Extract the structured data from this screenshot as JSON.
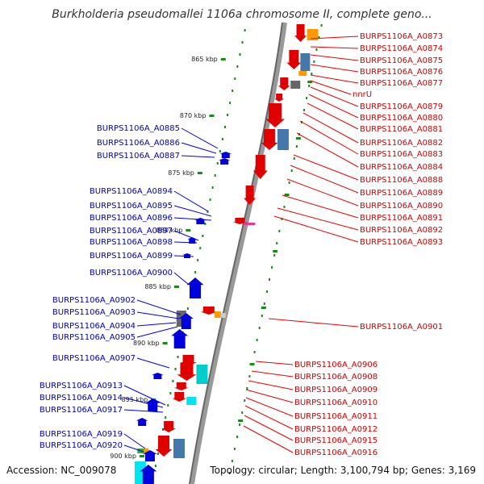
{
  "header": {
    "title": "Burkholderia pseudomallei 1106a chromosome II, complete geno..."
  },
  "footer": {
    "accession": "Accession: NC_009078",
    "summary": "Topology: circular; Length: 3,100,794 bp; Genes: 3,169"
  },
  "colors": {
    "forward": "#0000cc",
    "reverse": "#cc0000",
    "backbone": "#777777"
  },
  "ruler": [
    "865 kbp",
    "870 kbp",
    "875 kbp",
    "880 kbp",
    "885 kbp",
    "890 kbp",
    "895 kbp",
    "900 kbp"
  ],
  "left_genes": [
    "BURPS1106A_A0885",
    "BURPS1106A_A0886",
    "BURPS1106A_A0887",
    "BURPS1106A_A0894",
    "BURPS1106A_A0895",
    "BURPS1106A_A0896",
    "BURPS1106A_A0897",
    "BURPS1106A_A0898",
    "BURPS1106A_A0899",
    "BURPS1106A_A0900",
    "BURPS1106A_A0902",
    "BURPS1106A_A0903",
    "BURPS1106A_A0904",
    "BURPS1106A_A0905",
    "BURPS1106A_A0907",
    "BURPS1106A_A0913",
    "BURPS1106A_A0914",
    "BURPS1106A_A0917",
    "BURPS1106A_A0919",
    "BURPS1106A_A0920"
  ],
  "right_genes": [
    "BURPS1106A_A0873",
    "BURPS1106A_A0874",
    "BURPS1106A_A0875",
    "BURPS1106A_A0876",
    "BURPS1106A_A0877",
    "nnrU",
    "BURPS1106A_A0879",
    "BURPS1106A_A0880",
    "BURPS1106A_A0881",
    "BURPS1106A_A0882",
    "BURPS1106A_A0883",
    "BURPS1106A_A0884",
    "BURPS1106A_A0888",
    "BURPS1106A_A0889",
    "BURPS1106A_A0890",
    "BURPS1106A_A0891",
    "BURPS1106A_A0892",
    "BURPS1106A_A0893",
    "BURPS1106A_A0901",
    "BURPS1106A_A0906",
    "BURPS1106A_A0908",
    "BURPS1106A_A0909",
    "BURPS1106A_A0910",
    "BURPS1106A_A0911",
    "BURPS1106A_A0912",
    "BURPS1106A_A0915",
    "BURPS1106A_A0916"
  ]
}
